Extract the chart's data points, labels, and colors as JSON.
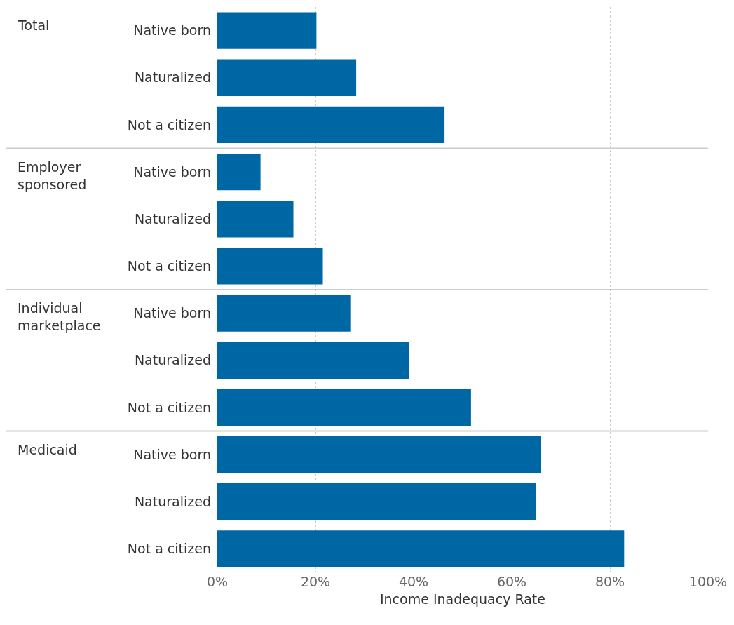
{
  "chart_data": {
    "type": "bar",
    "orientation": "horizontal",
    "xlabel": "Income Inadequacy Rate",
    "categories": [
      "Native born",
      "Naturalized",
      "Not a citizen",
      "Native born",
      "Naturalized",
      "Not a citizen",
      "Native born",
      "Naturalized",
      "Not a citizen",
      "Native born",
      "Naturalized",
      "Not a citizen"
    ],
    "annotations": [
      "Total",
      "Employer sponsored",
      "Individual marketplace",
      "Medicaid"
    ],
    "color": "#0067a5",
    "values": [
      20.2,
      28.3,
      46.3,
      8.8,
      15.5,
      21.5,
      27.1,
      39.0,
      51.7,
      66.0,
      65.0,
      82.9
    ],
    "xlim": [
      0,
      100
    ],
    "xticks": [
      {
        "value": 0,
        "label": "0%"
      },
      {
        "value": 20,
        "label": "20%"
      },
      {
        "value": 40,
        "label": "40%"
      },
      {
        "value": 60,
        "label": "60%"
      },
      {
        "value": 80,
        "label": "80%"
      },
      {
        "value": 100,
        "label": "100%"
      }
    ],
    "grid": "x"
  }
}
